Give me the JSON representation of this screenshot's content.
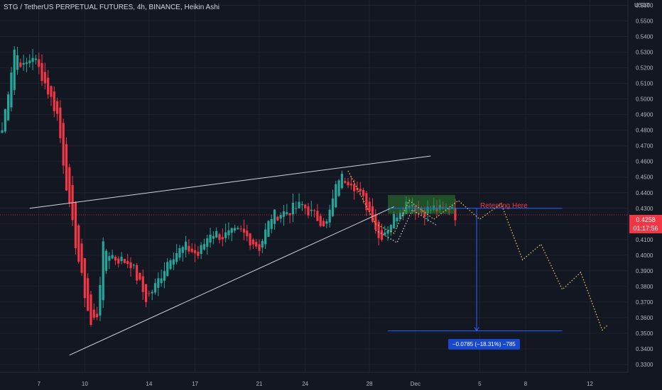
{
  "header": {
    "title": "STG / TetherUS PERPETUAL FUTURES, 4h, BINANCE, Heikin Ashi"
  },
  "price_axis": {
    "currency": "USDT",
    "current_price": "0.4258",
    "countdown": "01:17:56"
  },
  "annotations": {
    "retest_label": "Retesting Here",
    "measure_label": "−0.0785 (−18.31%) −785"
  },
  "colors": {
    "background": "#131722",
    "up": "#26a69a",
    "down": "#f23645",
    "wedge_line": "#d1d4dc",
    "projection": "#e0c55a",
    "measure": "#2962ff",
    "zone": "#2e7d32"
  },
  "chart_data": {
    "type": "candlestick",
    "title": "STG / TetherUS PERPETUAL FUTURES, 4h, BINANCE, Heikin Ashi",
    "ylim": [
      0.325,
      0.5625
    ],
    "y_ticks": [
      0.33,
      0.34,
      0.35,
      0.36,
      0.37,
      0.38,
      0.39,
      0.4,
      0.41,
      0.42,
      0.43,
      0.44,
      0.45,
      0.46,
      0.47,
      0.48,
      0.49,
      0.5,
      0.51,
      0.52,
      0.53,
      0.54,
      0.55,
      0.56
    ],
    "y_tick_labels": [
      "0.3300",
      "0.3400",
      "0.3500",
      "0.3600",
      "0.3700",
      "0.3800",
      "0.3900",
      "0.4000",
      "0.4100",
      "0.4200",
      "0.4300",
      "0.4400",
      "0.4500",
      "0.4600",
      "0.4700",
      "0.4800",
      "0.4900",
      "0.5000",
      "0.5100",
      "0.5200",
      "0.5300",
      "0.5400",
      "0.5500",
      "0.5600"
    ],
    "x_ticks": [
      "7",
      "10",
      "14",
      "17",
      "21",
      "24",
      "28",
      "Dec",
      "5",
      "8",
      "12"
    ],
    "x_tick_bar": [
      12,
      27,
      48,
      63,
      84,
      99,
      120,
      135,
      156,
      171,
      192
    ],
    "keypoints": [
      [
        0,
        0.48
      ],
      [
        4,
        0.532
      ],
      [
        7,
        0.52
      ],
      [
        10,
        0.528
      ],
      [
        13,
        0.515
      ],
      [
        18,
        0.49
      ],
      [
        22,
        0.43
      ],
      [
        26,
        0.385
      ],
      [
        29,
        0.355
      ],
      [
        31,
        0.362
      ],
      [
        33,
        0.405
      ],
      [
        37,
        0.398
      ],
      [
        42,
        0.395
      ],
      [
        47,
        0.372
      ],
      [
        50,
        0.38
      ],
      [
        55,
        0.4
      ],
      [
        60,
        0.405
      ],
      [
        64,
        0.4
      ],
      [
        68,
        0.415
      ],
      [
        72,
        0.412
      ],
      [
        78,
        0.415
      ],
      [
        84,
        0.405
      ],
      [
        88,
        0.425
      ],
      [
        93,
        0.428
      ],
      [
        98,
        0.432
      ],
      [
        102,
        0.425
      ],
      [
        106,
        0.42
      ],
      [
        110,
        0.45
      ],
      [
        114,
        0.448
      ],
      [
        118,
        0.435
      ],
      [
        121,
        0.425
      ],
      [
        123,
        0.411
      ],
      [
        126,
        0.418
      ],
      [
        130,
        0.43
      ],
      [
        133,
        0.435
      ],
      [
        137,
        0.428
      ],
      [
        141,
        0.43
      ],
      [
        144,
        0.428
      ],
      [
        147,
        0.432
      ],
      [
        148,
        0.4258
      ]
    ],
    "wedge_upper": [
      [
        9,
        0.43
      ],
      [
        140,
        0.4635
      ]
    ],
    "wedge_lower": [
      [
        22,
        0.336
      ],
      [
        128,
        0.431
      ]
    ],
    "support_line": {
      "y": 0.43,
      "x_start": 126,
      "x_end": 183
    },
    "target_line": {
      "y": 0.3515,
      "x_start": 126,
      "x_end": 183
    },
    "measure": {
      "x": 155,
      "from": 0.43,
      "to": 0.3515,
      "change": "−0.0785",
      "percent": "−18.31%",
      "ticks": "−785"
    },
    "retest_zone": {
      "x_start": 126,
      "x_end": 148,
      "y_low": 0.4265,
      "y_high": 0.4385
    },
    "projection_top": [
      [
        113,
        0.454
      ],
      [
        122,
        0.42
      ],
      [
        128,
        0.414
      ],
      [
        133,
        0.435
      ],
      [
        141,
        0.423
      ],
      [
        149,
        0.435
      ],
      [
        156,
        0.423
      ],
      [
        163,
        0.433
      ],
      [
        170,
        0.397
      ],
      [
        176,
        0.407
      ],
      [
        183,
        0.378
      ],
      [
        189,
        0.389
      ],
      [
        196,
        0.352
      ],
      [
        198,
        0.3555
      ]
    ],
    "projection_bottom": [
      [
        122,
        0.416
      ],
      [
        129,
        0.408
      ],
      [
        134,
        0.429
      ],
      [
        142,
        0.419
      ]
    ],
    "current_price": 0.4258
  }
}
